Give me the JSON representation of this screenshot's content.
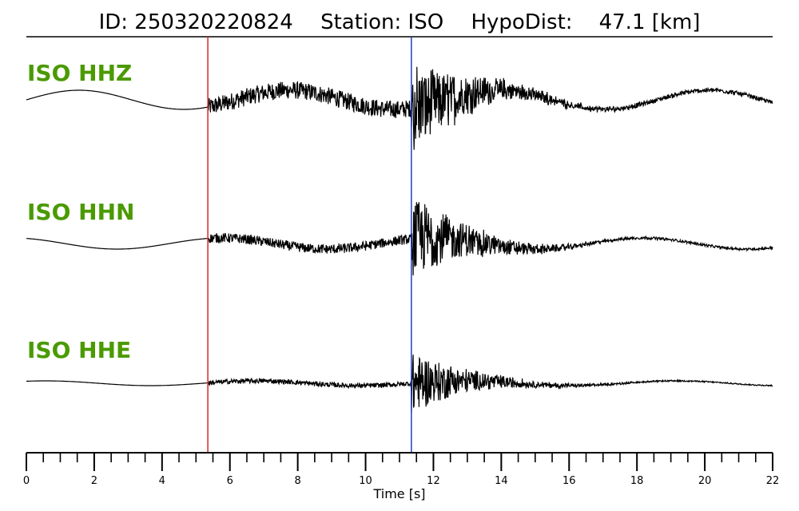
{
  "title": {
    "id": "ID: 250320220824",
    "station": "Station: ISO",
    "hypodist": "HypoDist:    47.1 [km]"
  },
  "chart_data": {
    "type": "line",
    "xlabel": "Time [s]",
    "xlim": [
      0,
      22
    ],
    "major_ticks": [
      0,
      2,
      4,
      6,
      8,
      10,
      12,
      14,
      16,
      18,
      20,
      22
    ],
    "minor_tick_step": 0.5,
    "picks": [
      {
        "phase": "P",
        "time": 5.35,
        "color": "#d62728"
      },
      {
        "phase": "S",
        "time": 11.35,
        "color": "#1f3fbf"
      }
    ],
    "traces": [
      {
        "name": "ISO HHZ",
        "color": "#4a9a00"
      },
      {
        "name": "ISO HHN",
        "color": "#4a9a00"
      },
      {
        "name": "ISO HHE",
        "color": "#4a9a00"
      }
    ]
  }
}
